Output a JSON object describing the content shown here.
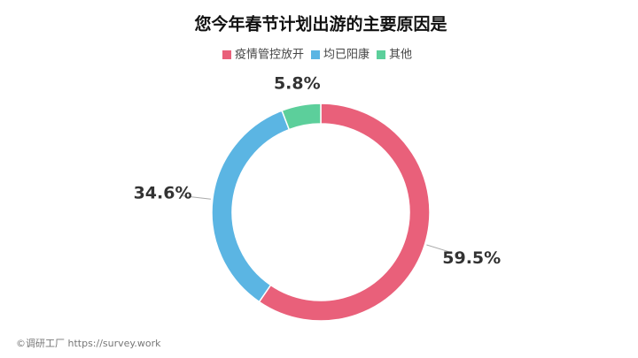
{
  "chart_data": {
    "type": "donut",
    "title": "您今年春节计划出游的主要原因是",
    "categories": [
      "疫情管控放开",
      "均已阳康",
      "其他"
    ],
    "values": [
      59.5,
      34.6,
      5.8
    ],
    "value_labels": [
      "59.5%",
      "34.6%",
      "5.8%"
    ],
    "colors": [
      "#e9607a",
      "#5bb5e3",
      "#5ccf9b"
    ],
    "legend": "top"
  },
  "footer": "©调研工厂 https://survey.work"
}
